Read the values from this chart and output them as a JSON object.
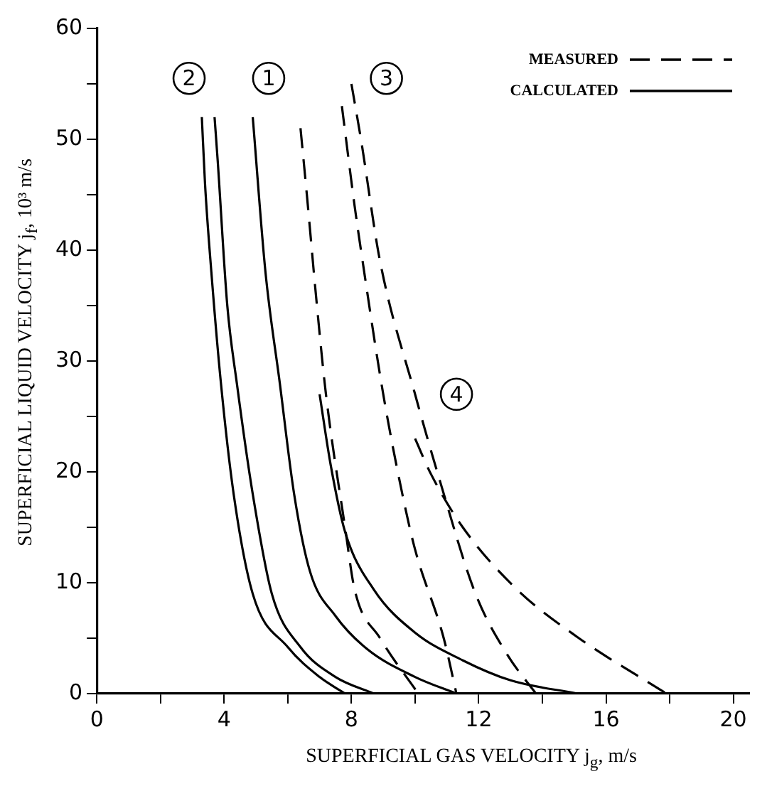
{
  "chart_data": {
    "type": "line",
    "xlabel": "SUPERFICIAL GAS VELOCITY j$_{g}$, m/s",
    "ylabel": "SUPERFICIAL LIQUID VELOCITY j$_{f}$, 10³ m/s",
    "xlim": [
      0,
      20.5
    ],
    "xticks": [
      0,
      {
        "value": 2,
        "label": null
      },
      4,
      {
        "value": 6,
        "label": null
      },
      8,
      {
        "value": 10,
        "label": null
      },
      12,
      {
        "value": 14,
        "label": null
      },
      16,
      {
        "value": 18,
        "label": null
      },
      20
    ],
    "ylim": [
      0,
      60
    ],
    "yticks": [
      0,
      {
        "value": 5,
        "label": null
      },
      10,
      {
        "value": 15,
        "label": null
      },
      20,
      {
        "value": 25,
        "label": null
      },
      30,
      {
        "value": 35,
        "label": null
      },
      40,
      {
        "value": 45,
        "label": null
      },
      50,
      {
        "value": 55,
        "label": null
      },
      60
    ],
    "grid": false,
    "legend": "top right",
    "marker": "none",
    "series": [
      {
        "name": "MEASURED",
        "color": "#000000",
        "line_style": "dashed",
        "x": [
          7.7,
          8.1,
          8.3,
          9.0,
          9.6,
          10.0,
          10.9,
          11.3
        ],
        "values": [
          53,
          44,
          40,
          27,
          18,
          13,
          5,
          0
        ]
      },
      {
        "name": "CALCULATED",
        "color": "#000000",
        "line_style": "solid",
        "x": [
          3.3,
          3.4,
          3.6,
          3.9,
          4.3,
          4.9,
          6.0,
          7.0,
          7.8
        ],
        "values": [
          52,
          46,
          38,
          28,
          18,
          9,
          4.2,
          1.5,
          0
        ]
      },
      {
        "color": "#000000",
        "line_style": "solid",
        "x": [
          3.7,
          3.8,
          4.1,
          4.4,
          4.9,
          5.5,
          6.4,
          7.5,
          8.7
        ],
        "values": [
          52,
          48,
          35,
          28,
          18,
          9,
          4.2,
          1.5,
          0
        ]
      },
      {
        "color": "#000000",
        "line_style": "dashed",
        "x": [
          6.4,
          6.6,
          6.9,
          7.2,
          7.8,
          8.1,
          8.9,
          10.1
        ],
        "values": [
          51,
          45,
          35.5,
          27,
          15,
          9.4,
          5,
          0
        ]
      },
      {
        "color": "#000000",
        "line_style": "solid",
        "x": [
          4.9,
          5.3,
          5.75,
          6.2,
          6.7,
          7.5,
          8.5,
          10,
          11.3
        ],
        "values": [
          52,
          38,
          28,
          18,
          11,
          7,
          4,
          1.5,
          0
        ]
      },
      {
        "color": "#000000",
        "line_style": "dashed",
        "x": [
          8.0,
          8.3,
          8.9,
          10,
          10.8,
          11.9,
          12.9,
          13.8
        ],
        "values": [
          55,
          50,
          39,
          27,
          19,
          9,
          3.5,
          0
        ]
      },
      {
        "color": "#000000",
        "line_style": "solid",
        "x": [
          7.0,
          7.35,
          7.8,
          8.7,
          10,
          11.5,
          13,
          15.1
        ],
        "values": [
          27,
          20.6,
          14.6,
          9.4,
          5.5,
          3,
          1.2,
          0
        ]
      },
      {
        "color": "#000000",
        "line_style": "dashed",
        "x": [
          10.0,
          10.5,
          11.5,
          13.2,
          15.1,
          17.9
        ],
        "values": [
          23,
          19.8,
          15,
          9.4,
          5.1,
          0
        ]
      }
    ],
    "annotations": [
      {
        "text": "2",
        "x": 2.9,
        "y": 55.5
      },
      {
        "text": "1",
        "x": 5.4,
        "y": 55.5
      },
      {
        "text": "3",
        "x": 9.1,
        "y": 55.5
      },
      {
        "text": "4",
        "x": 11.3,
        "y": 27
      }
    ]
  }
}
